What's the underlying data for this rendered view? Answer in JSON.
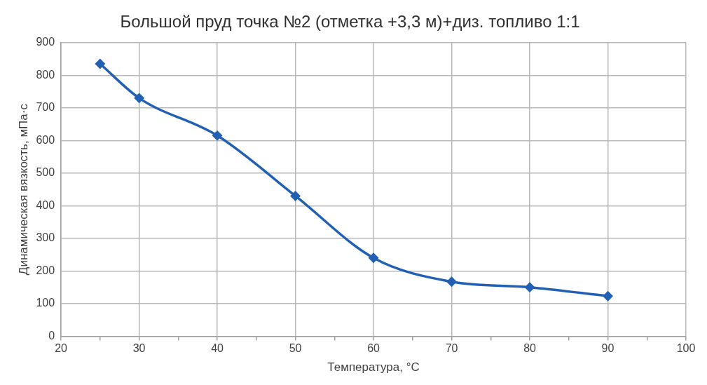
{
  "chart_data": {
    "type": "line",
    "title": "Большой пруд точка №2 (отметка +3,3 м)+диз. топливо 1:1",
    "xlabel": "Температура, °C",
    "ylabel": "Динамическая вязкость, мПа·с",
    "x": [
      25,
      30,
      40,
      50,
      60,
      70,
      80,
      90
    ],
    "series": [
      {
        "color": "#2260b4",
        "values": [
          835,
          730,
          615,
          430,
          240,
          167,
          150,
          123
        ]
      }
    ],
    "xlim": [
      20,
      100
    ],
    "xticks": [
      20,
      {
        "value": 25,
        "label": null
      },
      30,
      {
        "value": 35,
        "label": null
      },
      40,
      {
        "value": 45,
        "label": null
      },
      50,
      {
        "value": 55,
        "label": null
      },
      60,
      {
        "value": 65,
        "label": null
      },
      70,
      {
        "value": 75,
        "label": null
      },
      80,
      {
        "value": 85,
        "label": null
      },
      90,
      {
        "value": 95,
        "label": null
      },
      100
    ],
    "ylim": [
      0,
      900
    ],
    "yticks": [
      0,
      100,
      200,
      300,
      400,
      500,
      600,
      700,
      800,
      900
    ],
    "grid": true,
    "marker": "diamond",
    "line_style": "solid",
    "legend": false
  }
}
